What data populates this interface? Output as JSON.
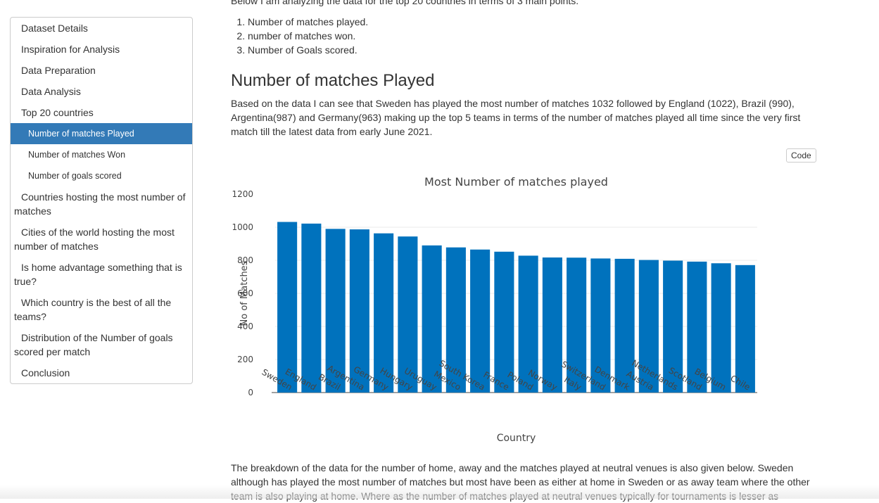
{
  "toc": {
    "items": [
      {
        "label": "Dataset Details",
        "level": 1,
        "active": false
      },
      {
        "label": "Inspiration for Analysis",
        "level": 1,
        "active": false
      },
      {
        "label": "Data Preparation",
        "level": 1,
        "active": false
      },
      {
        "label": "Data Analysis",
        "level": 1,
        "active": false
      },
      {
        "label": "Top 20 countries",
        "level": 1,
        "active": false
      },
      {
        "label": "Number of matches Played",
        "level": 2,
        "active": true
      },
      {
        "label": "Number of matches Won",
        "level": 2,
        "active": false
      },
      {
        "label": "Number of goals scored",
        "level": 2,
        "active": false
      },
      {
        "label": "Countries hosting the most number of matches",
        "level": 1,
        "active": false
      },
      {
        "label": "Cities of the world hosting the most number of matches",
        "level": 1,
        "active": false
      },
      {
        "label": "Is home advantage something that is true?",
        "level": 1,
        "active": false
      },
      {
        "label": "Which country is the best of all the teams?",
        "level": 1,
        "active": false
      },
      {
        "label": "Distribution of the Number of goals scored per match",
        "level": 1,
        "active": false
      },
      {
        "label": "Conclusion",
        "level": 1,
        "active": false
      }
    ]
  },
  "main": {
    "intro": "Below I am analyzing the data for the top 20 countries in terms of 3 main points.",
    "points": [
      "Number of matches played.",
      "number of matches won.",
      "Number of Goals scored."
    ],
    "section_title": "Number of matches Played",
    "description": "Based on the data I can see that Sweden has played the most number of matches 1032 followed by England (1022), Brazil (990), Argentina(987) and Germany(963) making up the top 5 teams in terms of the number of matches played all time since the very first match till the latest data from early June 2021.",
    "code_button": "Code",
    "breakdown": "The breakdown of the data for the number of home, away and the matches played at neutral venues is also given below. Sweden although has played the most number of matches but most have been as either at home in Sweden or as away team where the other team is also playing at home. Where as the number of matches played at neutral venues typically for tournaments is lesser as"
  },
  "chart_data": {
    "type": "bar",
    "title": "Most Number of matches played",
    "xlabel": "Country",
    "ylabel": "No of Matches",
    "ylim": [
      0,
      1200
    ],
    "yticks": [
      0,
      200,
      400,
      600,
      800,
      1000,
      1200
    ],
    "grid": true,
    "color": "#0072bd",
    "categories": [
      "Sweden",
      "England",
      "Brazil",
      "Argentina",
      "Germany",
      "Hungary",
      "Uruguay",
      "Mexico",
      "South Korea",
      "France",
      "Poland",
      "Norway",
      "Italy",
      "Switzerland",
      "Denmark",
      "Austria",
      "Netherlands",
      "Scotland",
      "Belgium",
      "Chile"
    ],
    "values": [
      1032,
      1022,
      990,
      987,
      963,
      944,
      890,
      878,
      865,
      852,
      828,
      817,
      816,
      811,
      809,
      802,
      798,
      792,
      782,
      771
    ]
  }
}
